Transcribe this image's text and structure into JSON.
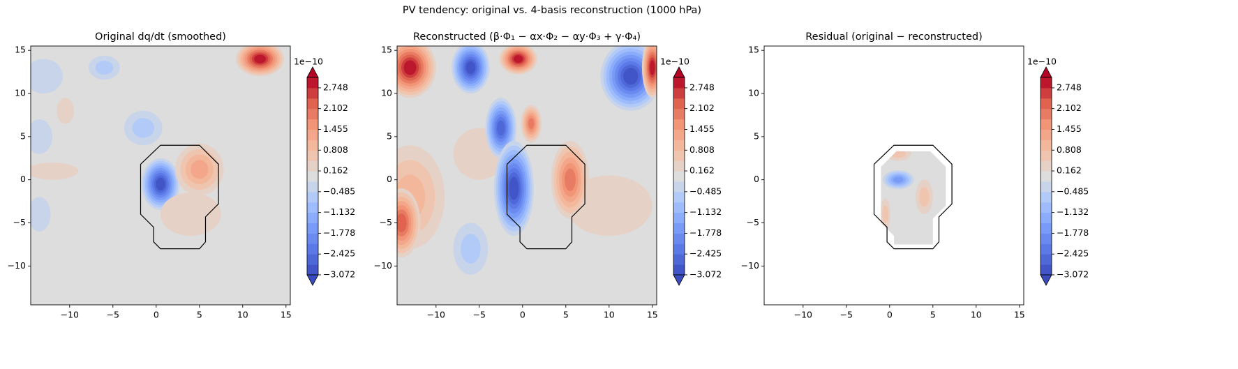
{
  "title": "PV tendency: original vs. 4-basis reconstruction (1000 hPa)",
  "chart_data": [
    {
      "type": "contour",
      "title": "Original dq/dt (smoothed)",
      "colormap": "coolwarm",
      "xlim": [
        -14.5,
        15.5
      ],
      "ylim": [
        -14.5,
        15.5
      ],
      "xticks": [
        {
          "value": -10,
          "label": "−10"
        },
        {
          "value": -5,
          "label": "−5"
        },
        0,
        5,
        10,
        15
      ],
      "yticks": [
        {
          "value": -10,
          "label": "−10"
        },
        {
          "value": -5,
          "label": "−5"
        },
        0,
        5,
        10,
        15
      ],
      "clim": [
        -3.072,
        3.072
      ],
      "colorbar_label": "1e−10",
      "colorbar_ticks": [
        {
          "value": -3.072,
          "label": "−3.072"
        },
        {
          "value": -2.425,
          "label": "−2.425"
        },
        {
          "value": -1.778,
          "label": "−1.778"
        },
        {
          "value": -1.132,
          "label": "−1.132"
        },
        {
          "value": -0.485,
          "label": "−0.485"
        },
        0.162,
        0.808,
        1.455,
        2.102,
        2.748
      ],
      "outline": [
        [
          -1.8,
          1.8
        ],
        [
          0.5,
          4
        ],
        [
          5,
          4
        ],
        [
          7.2,
          1.8
        ],
        [
          7.2,
          -2.8
        ],
        [
          5.7,
          -4.3
        ],
        [
          5.7,
          -7.2
        ],
        [
          5,
          -8
        ],
        [
          0.5,
          -8
        ],
        [
          -0.3,
          -7.2
        ],
        [
          -0.3,
          -5.5
        ],
        [
          -1.8,
          -4
        ],
        [
          -1.8,
          1.8
        ]
      ],
      "blobs": [
        {
          "x": 0.5,
          "y": -0.5,
          "rx": 2.2,
          "ry": 3,
          "value": -3.0
        },
        {
          "x": 5,
          "y": 1.2,
          "rx": 2.8,
          "ry": 3,
          "value": 1.2
        },
        {
          "x": 12,
          "y": 14,
          "rx": 2.8,
          "ry": 2,
          "value": 2.8
        },
        {
          "x": -6,
          "y": 13,
          "rx": 1.8,
          "ry": 1.4,
          "value": -0.8
        },
        {
          "x": -1.5,
          "y": 6,
          "rx": 2.2,
          "ry": 2,
          "value": -0.6
        },
        {
          "x": -13,
          "y": 12,
          "rx": 2.2,
          "ry": 2,
          "value": -0.4
        },
        {
          "x": -10.5,
          "y": 8,
          "rx": 1,
          "ry": 1.5,
          "value": 0.4
        },
        {
          "x": 4,
          "y": -4,
          "rx": 3.5,
          "ry": 2.5,
          "value": 0.4
        },
        {
          "x": -13.5,
          "y": 5,
          "rx": 1.5,
          "ry": 2,
          "value": -0.4
        },
        {
          "x": -13.5,
          "y": -4,
          "rx": 1.3,
          "ry": 2,
          "value": -0.3
        },
        {
          "x": -12,
          "y": 1,
          "rx": 3,
          "ry": 1,
          "value": 0.3
        }
      ]
    },
    {
      "type": "contour",
      "title": "Reconstructed (β·Φ₁ − αx·Φ₂ − αy·Φ₃ + γ·Φ₄)",
      "colormap": "coolwarm",
      "xlim": [
        -14.5,
        15.5
      ],
      "ylim": [
        -14.5,
        15.5
      ],
      "xticks": [
        {
          "value": -10,
          "label": "−10"
        },
        {
          "value": -5,
          "label": "−5"
        },
        0,
        5,
        10,
        15
      ],
      "yticks": [
        {
          "value": -10,
          "label": "−10"
        },
        {
          "value": -5,
          "label": "−5"
        },
        0,
        5,
        10,
        15
      ],
      "clim": [
        -3.072,
        3.072
      ],
      "colorbar_label": "1e−10",
      "colorbar_ticks": [
        {
          "value": -3.072,
          "label": "−3.072"
        },
        {
          "value": -2.425,
          "label": "−2.425"
        },
        {
          "value": -1.778,
          "label": "−1.778"
        },
        {
          "value": -1.132,
          "label": "−1.132"
        },
        {
          "value": -0.485,
          "label": "−0.485"
        },
        0.162,
        0.808,
        1.455,
        2.102,
        2.748
      ],
      "outline": [
        [
          -1.8,
          1.8
        ],
        [
          0.5,
          4
        ],
        [
          5,
          4
        ],
        [
          7.2,
          1.8
        ],
        [
          7.2,
          -2.8
        ],
        [
          5.7,
          -4.3
        ],
        [
          5.7,
          -7.2
        ],
        [
          5,
          -8
        ],
        [
          0.5,
          -8
        ],
        [
          -0.3,
          -7.2
        ],
        [
          -0.3,
          -5.5
        ],
        [
          -1.8,
          -4
        ],
        [
          -1.8,
          1.8
        ]
      ],
      "blobs": [
        {
          "x": -13,
          "y": -2,
          "rx": 4,
          "ry": 6,
          "value": 1.0
        },
        {
          "x": 10,
          "y": -3,
          "rx": 5,
          "ry": 3.5,
          "value": 0.4
        },
        {
          "x": -5,
          "y": 3,
          "rx": 3,
          "ry": 3,
          "value": 0.4
        },
        {
          "x": -13,
          "y": 13,
          "rx": 3,
          "ry": 3.5,
          "value": 3.0
        },
        {
          "x": -6,
          "y": 13,
          "rx": 2.2,
          "ry": 3,
          "value": -3.0
        },
        {
          "x": -0.5,
          "y": 14,
          "rx": 2.2,
          "ry": 1.8,
          "value": 3.0
        },
        {
          "x": 12.5,
          "y": 12,
          "rx": 3.5,
          "ry": 4,
          "value": -3.0
        },
        {
          "x": 15,
          "y": 13,
          "rx": 1.2,
          "ry": 3.5,
          "value": 3.0
        },
        {
          "x": -2.5,
          "y": 6,
          "rx": 1.8,
          "ry": 3.5,
          "value": -2.5
        },
        {
          "x": 1,
          "y": 6.5,
          "rx": 1.2,
          "ry": 2.2,
          "value": 1.8
        },
        {
          "x": -1,
          "y": -1,
          "rx": 2.3,
          "ry": 5.5,
          "value": -2.8
        },
        {
          "x": 5.5,
          "y": 0,
          "rx": 2.2,
          "ry": 4.5,
          "value": 1.8
        },
        {
          "x": -14,
          "y": -5,
          "rx": 2.2,
          "ry": 4,
          "value": 2.3
        },
        {
          "x": -6,
          "y": -8,
          "rx": 2,
          "ry": 3,
          "value": -0.5
        }
      ]
    },
    {
      "type": "contour",
      "title": "Residual (original − reconstructed)",
      "colormap": "coolwarm",
      "xlim": [
        -14.5,
        15.5
      ],
      "ylim": [
        -14.5,
        15.5
      ],
      "xticks": [
        {
          "value": -10,
          "label": "−10"
        },
        {
          "value": -5,
          "label": "−5"
        },
        0,
        5,
        10,
        15
      ],
      "yticks": [
        {
          "value": -10,
          "label": "−10"
        },
        {
          "value": -5,
          "label": "−5"
        },
        0,
        5,
        10,
        15
      ],
      "clim": [
        -3.072,
        3.072
      ],
      "colorbar_label": "1e−10",
      "colorbar_ticks": [
        {
          "value": -3.072,
          "label": "−3.072"
        },
        {
          "value": -2.425,
          "label": "−2.425"
        },
        {
          "value": -1.778,
          "label": "−1.778"
        },
        {
          "value": -1.132,
          "label": "−1.132"
        },
        {
          "value": -0.485,
          "label": "−0.485"
        },
        0.162,
        0.808,
        1.455,
        2.102,
        2.748
      ],
      "outline": [
        [
          -1.8,
          1.8
        ],
        [
          0.5,
          4
        ],
        [
          5,
          4
        ],
        [
          7.2,
          1.8
        ],
        [
          7.2,
          -2.8
        ],
        [
          5.7,
          -4.3
        ],
        [
          5.7,
          -7.2
        ],
        [
          5,
          -8
        ],
        [
          0.5,
          -8
        ],
        [
          -0.3,
          -7.2
        ],
        [
          -0.3,
          -5.5
        ],
        [
          -1.8,
          -4
        ],
        [
          -1.8,
          1.8
        ]
      ],
      "field_clip": [
        [
          -1,
          1.5
        ],
        [
          0.8,
          3.3
        ],
        [
          4.7,
          3.3
        ],
        [
          6.5,
          1.5
        ],
        [
          6.5,
          -3
        ],
        [
          5,
          -4.5
        ],
        [
          5,
          -7.5
        ],
        [
          0.5,
          -7.5
        ],
        [
          0.5,
          -6.5
        ],
        [
          -1,
          -5
        ]
      ],
      "blobs": [
        {
          "x": 1,
          "y": 3,
          "rx": 1.5,
          "ry": 0.8,
          "value": 0.5
        },
        {
          "x": 1,
          "y": 0,
          "rx": 1.8,
          "ry": 1.1,
          "value": -1.5
        },
        {
          "x": -0.5,
          "y": -4,
          "rx": 0.6,
          "ry": 1.8,
          "value": 0.8
        },
        {
          "x": 4,
          "y": -2,
          "rx": 1,
          "ry": 2,
          "value": 0.5
        }
      ]
    }
  ]
}
